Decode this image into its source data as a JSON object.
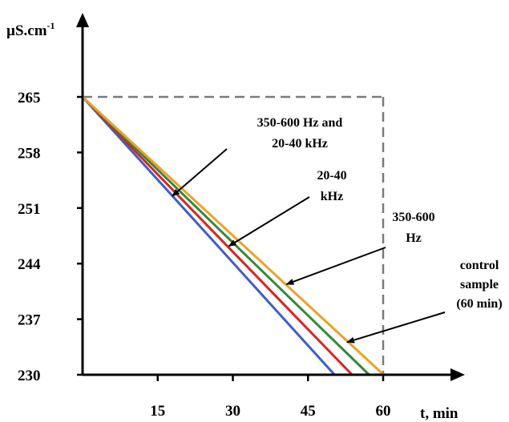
{
  "chart_data": {
    "type": "line",
    "title": "",
    "xlabel": "t, min",
    "ylabel_base": "µS.cm",
    "ylabel_sup": "-1",
    "xlim": [
      0,
      69
    ],
    "ylim": [
      230,
      265
    ],
    "x_ticks": [
      15,
      30,
      45,
      60
    ],
    "y_ticks": [
      230,
      237,
      244,
      251,
      258,
      265
    ],
    "grid": false,
    "reference_lines": [
      {
        "from": [
          0,
          265
        ],
        "to": [
          60,
          265
        ],
        "style": "dashed"
      },
      {
        "from": [
          60,
          265
        ],
        "to": [
          60,
          230
        ],
        "style": "dashed"
      }
    ],
    "series": [
      {
        "color": "#3a5fcd",
        "points": [
          [
            0,
            265
          ],
          [
            50.3,
            230
          ]
        ]
      },
      {
        "color": "#e02020",
        "points": [
          [
            0,
            265
          ],
          [
            53.8,
            230
          ]
        ]
      },
      {
        "color": "#2e8b3a",
        "points": [
          [
            0,
            265
          ],
          [
            57.2,
            230
          ]
        ]
      },
      {
        "color": "#f0a020",
        "points": [
          [
            0,
            265
          ],
          [
            60.1,
            230
          ]
        ]
      }
    ],
    "annotations": [
      {
        "lines": [
          "350-600 Hz and",
          "20-40 kHz"
        ],
        "arrow_to": [
          17.9,
          252.5
        ]
      },
      {
        "lines": [
          "20-40",
          "kHz"
        ],
        "arrow_to": [
          29.2,
          246.2
        ]
      },
      {
        "lines": [
          "350-600",
          "Hz"
        ],
        "arrow_to": [
          40.7,
          241.4
        ]
      },
      {
        "lines": [
          "control",
          "sample",
          "(60 min)"
        ],
        "arrow_to": [
          52.8,
          234.1
        ]
      }
    ]
  }
}
